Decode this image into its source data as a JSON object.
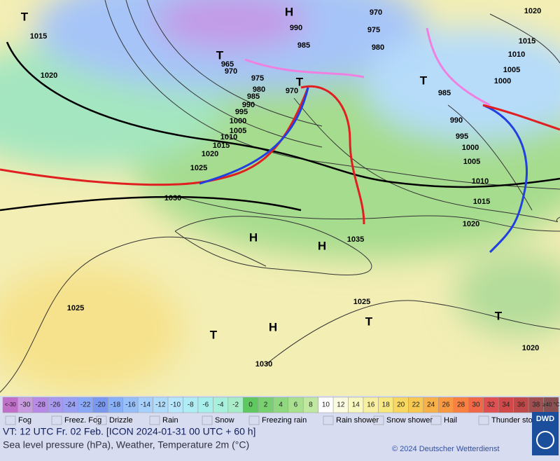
{
  "map": {
    "labels": [
      "1015",
      "1020",
      "965",
      "970",
      "975",
      "980",
      "985",
      "990",
      "995",
      "1000",
      "1005",
      "1010",
      "1015",
      "1020",
      "1025",
      "1030",
      "1025",
      "1035",
      "1025",
      "1030",
      "970",
      "990",
      "985",
      "975",
      "980",
      "970",
      "985",
      "990",
      "995",
      "1000",
      "1005",
      "1010",
      "1015",
      "1020",
      "1020",
      "1015",
      "1010",
      "1005",
      "1000",
      "1020"
    ],
    "centers": [
      "H",
      "T",
      "T",
      "T",
      "T",
      "H",
      "H",
      "H",
      "T",
      "T",
      "T"
    ]
  },
  "scale": [
    {
      "label": "<-30",
      "color": "#c070c8"
    },
    {
      "label": "-30",
      "color": "#c89ae0"
    },
    {
      "label": "-28",
      "color": "#b88ae8"
    },
    {
      "label": "-26",
      "color": "#a898f0"
    },
    {
      "label": "-24",
      "color": "#9aa0f4"
    },
    {
      "label": "-22",
      "color": "#8aa8f8"
    },
    {
      "label": "-20",
      "color": "#7a98f0"
    },
    {
      "label": "-18",
      "color": "#88b0f8"
    },
    {
      "label": "-16",
      "color": "#98c0f8"
    },
    {
      "label": "-14",
      "color": "#a8d0fc"
    },
    {
      "label": "-12",
      "color": "#b0dcfc"
    },
    {
      "label": "-10",
      "color": "#b8e6fc"
    },
    {
      "label": "-8",
      "color": "#b0ecf4"
    },
    {
      "label": "-6",
      "color": "#a8f0ec"
    },
    {
      "label": "-4",
      "color": "#a8f0dc"
    },
    {
      "label": "-2",
      "color": "#a8ecc8"
    },
    {
      "label": "0",
      "color": "#60c860"
    },
    {
      "label": "2",
      "color": "#78d070"
    },
    {
      "label": "4",
      "color": "#90d880"
    },
    {
      "label": "6",
      "color": "#a8e090"
    },
    {
      "label": "8",
      "color": "#c0e8a0"
    },
    {
      "label": "10",
      "color": "#ffffff"
    },
    {
      "label": "12",
      "color": "#fcfce0"
    },
    {
      "label": "14",
      "color": "#f8f8c0"
    },
    {
      "label": "16",
      "color": "#f8f0a0"
    },
    {
      "label": "18",
      "color": "#f8e880"
    },
    {
      "label": "20",
      "color": "#f8d860"
    },
    {
      "label": "22",
      "color": "#f8c850"
    },
    {
      "label": "24",
      "color": "#f8b048"
    },
    {
      "label": "26",
      "color": "#f89840"
    },
    {
      "label": "28",
      "color": "#f88040"
    },
    {
      "label": "30",
      "color": "#f06848"
    },
    {
      "label": "32",
      "color": "#e05050"
    },
    {
      "label": "34",
      "color": "#d04848"
    },
    {
      "label": "36",
      "color": "#c04848"
    },
    {
      "label": "38",
      "color": "#a05050"
    },
    {
      "label": "≥40 °C",
      "color": "#885050"
    }
  ],
  "legend": [
    "Fog",
    "Freez. Fog",
    "Drizzle",
    "Rain",
    "Snow",
    "Freezing rain",
    "Rain shower",
    "Snow shower",
    "Hail",
    "Thunder storm"
  ],
  "footer": {
    "valid": "VT: 12 UTC Fr.  02 Feb. [ICON 2024-01-31  00 UTC + 60 h]",
    "description": "Sea level pressure (hPa), Weather, Temperature 2m (°C)",
    "copyright": "© 2024 Deutscher Wetterdienst",
    "logo": "DWD"
  }
}
